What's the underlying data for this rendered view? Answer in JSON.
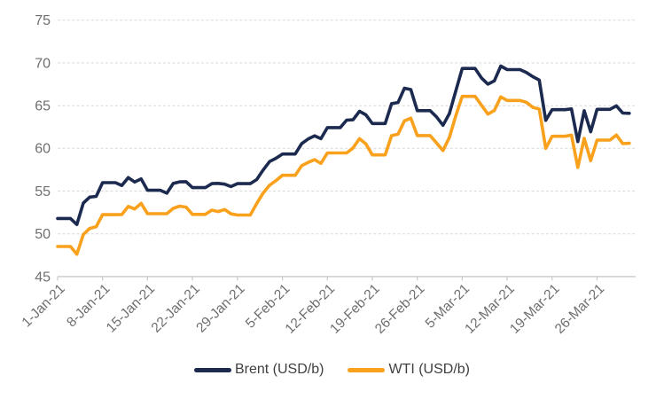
{
  "chart_data": {
    "type": "line",
    "title": "",
    "grid": "horizontal-dashed",
    "legend_position": "bottom-center",
    "ylim": [
      45,
      75
    ],
    "ytick_step": 5,
    "ytick_labels": [
      "45",
      "50",
      "55",
      "60",
      "65",
      "70",
      "75"
    ],
    "xtick_labels": [
      "1-Jan-21",
      "8-Jan-21",
      "15-Jan-21",
      "22-Jan-21",
      "29-Jan-21",
      "5-Feb-21",
      "12-Feb-21",
      "19-Feb-21",
      "26-Feb-21",
      "5-Mar-21",
      "12-Mar-21",
      "19-Mar-21",
      "26-Mar-21"
    ],
    "x": [
      "1-Jan-21",
      "2-Jan-21",
      "3-Jan-21",
      "4-Jan-21",
      "5-Jan-21",
      "6-Jan-21",
      "7-Jan-21",
      "8-Jan-21",
      "9-Jan-21",
      "10-Jan-21",
      "11-Jan-21",
      "12-Jan-21",
      "13-Jan-21",
      "14-Jan-21",
      "15-Jan-21",
      "16-Jan-21",
      "17-Jan-21",
      "18-Jan-21",
      "19-Jan-21",
      "20-Jan-21",
      "21-Jan-21",
      "22-Jan-21",
      "23-Jan-21",
      "24-Jan-21",
      "25-Jan-21",
      "26-Jan-21",
      "27-Jan-21",
      "28-Jan-21",
      "29-Jan-21",
      "30-Jan-21",
      "31-Jan-21",
      "1-Feb-21",
      "2-Feb-21",
      "3-Feb-21",
      "4-Feb-21",
      "5-Feb-21",
      "6-Feb-21",
      "7-Feb-21",
      "8-Feb-21",
      "9-Feb-21",
      "10-Feb-21",
      "11-Feb-21",
      "12-Feb-21",
      "13-Feb-21",
      "14-Feb-21",
      "15-Feb-21",
      "16-Feb-21",
      "17-Feb-21",
      "18-Feb-21",
      "19-Feb-21",
      "20-Feb-21",
      "21-Feb-21",
      "22-Feb-21",
      "23-Feb-21",
      "24-Feb-21",
      "25-Feb-21",
      "26-Feb-21",
      "27-Feb-21",
      "28-Feb-21",
      "1-Mar-21",
      "2-Mar-21",
      "3-Mar-21",
      "4-Mar-21",
      "5-Mar-21",
      "6-Mar-21",
      "7-Mar-21",
      "8-Mar-21",
      "9-Mar-21",
      "10-Mar-21",
      "11-Mar-21",
      "12-Mar-21",
      "13-Mar-21",
      "14-Mar-21",
      "15-Mar-21",
      "16-Mar-21",
      "17-Mar-21",
      "18-Mar-21",
      "19-Mar-21",
      "20-Mar-21",
      "21-Mar-21",
      "22-Mar-21",
      "23-Mar-21",
      "24-Mar-21",
      "25-Mar-21",
      "26-Mar-21",
      "27-Mar-21",
      "28-Mar-21",
      "29-Mar-21",
      "30-Mar-21",
      "31-Mar-21"
    ],
    "series": [
      {
        "name": "Brent (USD/b)",
        "color": "#1B2A4E",
        "values": [
          51.8,
          51.8,
          51.8,
          51.09,
          53.6,
          54.3,
          54.38,
          55.99,
          55.99,
          55.99,
          55.66,
          56.58,
          56.06,
          56.42,
          55.1,
          55.1,
          55.1,
          54.75,
          55.9,
          56.08,
          56.1,
          55.41,
          55.41,
          55.41,
          55.88,
          55.91,
          55.81,
          55.53,
          55.88,
          55.88,
          55.88,
          56.35,
          57.46,
          58.46,
          58.84,
          59.34,
          59.34,
          59.34,
          60.56,
          61.09,
          61.47,
          61.14,
          62.43,
          62.43,
          62.43,
          63.3,
          63.35,
          64.34,
          63.93,
          62.91,
          62.91,
          62.91,
          65.24,
          65.37,
          67.04,
          66.88,
          64.42,
          64.42,
          64.42,
          63.69,
          62.7,
          64.07,
          66.74,
          69.36,
          69.36,
          69.36,
          68.24,
          67.52,
          67.9,
          69.63,
          69.22,
          69.22,
          69.22,
          68.88,
          68.39,
          68.0,
          63.28,
          64.53,
          64.53,
          64.53,
          64.62,
          60.79,
          64.41,
          61.95,
          64.57,
          64.57,
          64.57,
          64.98,
          64.14,
          64.1
        ]
      },
      {
        "name": "WTI (USD/b)",
        "color": "#F9A11C",
        "values": [
          48.52,
          48.52,
          48.52,
          47.62,
          49.93,
          50.63,
          50.83,
          52.24,
          52.24,
          52.24,
          52.25,
          53.21,
          52.91,
          53.57,
          52.36,
          52.36,
          52.36,
          52.36,
          52.98,
          53.24,
          53.13,
          52.27,
          52.27,
          52.27,
          52.77,
          52.61,
          52.85,
          52.34,
          52.2,
          52.2,
          52.2,
          53.55,
          54.76,
          55.69,
          56.23,
          56.85,
          56.85,
          56.85,
          57.97,
          58.36,
          58.68,
          58.24,
          59.47,
          59.47,
          59.47,
          59.47,
          60.05,
          61.14,
          60.52,
          59.24,
          59.24,
          59.24,
          61.49,
          61.67,
          63.22,
          63.53,
          61.5,
          61.5,
          61.5,
          60.64,
          59.75,
          61.28,
          63.83,
          66.09,
          66.09,
          66.09,
          65.05,
          64.01,
          64.44,
          66.02,
          65.61,
          65.61,
          65.61,
          65.39,
          64.8,
          64.6,
          60.0,
          61.42,
          61.42,
          61.42,
          61.55,
          57.76,
          61.18,
          58.56,
          60.97,
          60.97,
          60.97,
          61.56,
          60.55,
          60.6
        ]
      }
    ],
    "colors": {
      "grid": "#D9D9D9",
      "axis": "#C9C9C9",
      "tick_label": "#6F6F6F",
      "legend_text": "#3F3F3F",
      "background": "#FFFFFF"
    }
  }
}
